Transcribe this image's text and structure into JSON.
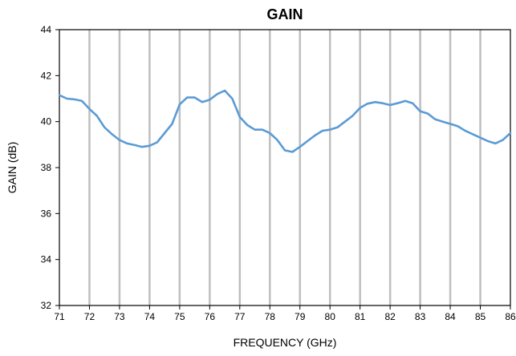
{
  "chart_data": {
    "type": "line",
    "title": "GAIN",
    "xlabel": "FREQUENCY (GHz)",
    "ylabel": "GAIN (dB)",
    "xlim": [
      71,
      86
    ],
    "ylim": [
      32,
      44
    ],
    "x_ticks": [
      71,
      72,
      73,
      74,
      75,
      76,
      77,
      78,
      79,
      80,
      81,
      82,
      83,
      84,
      85,
      86
    ],
    "y_ticks": [
      32,
      34,
      36,
      38,
      40,
      42,
      44
    ],
    "x_tick_labels": [
      "71",
      "72",
      "73",
      "74",
      "75",
      "76",
      "77",
      "78",
      "79",
      "80",
      "81",
      "82",
      "83",
      "84",
      "85",
      "86"
    ],
    "y_tick_labels": [
      "32",
      "34",
      "36",
      "38",
      "40",
      "42",
      "44"
    ],
    "grid": {
      "vertical": true,
      "horizontal": false
    },
    "line_color": "#5b9bd5",
    "grid_color": "#bfbfbf",
    "series": [
      {
        "x": [
          71.0,
          71.25,
          71.5,
          71.75,
          72.0,
          72.25,
          72.5,
          72.75,
          73.0,
          73.25,
          73.5,
          73.75,
          74.0,
          74.25,
          74.5,
          74.75,
          75.0,
          75.25,
          75.5,
          75.75,
          76.0,
          76.25,
          76.5,
          76.75,
          77.0,
          77.25,
          77.5,
          77.75,
          78.0,
          78.25,
          78.5,
          78.75,
          79.0,
          79.25,
          79.5,
          79.75,
          80.0,
          80.25,
          80.5,
          80.75,
          81.0,
          81.25,
          81.5,
          81.75,
          82.0,
          82.25,
          82.5,
          82.75,
          83.0,
          83.25,
          83.5,
          83.75,
          84.0,
          84.25,
          84.5,
          84.75,
          85.0,
          85.25,
          85.5,
          85.75,
          86.0
        ],
        "y": [
          41.15,
          41.0,
          40.97,
          40.9,
          40.55,
          40.25,
          39.75,
          39.45,
          39.2,
          39.05,
          38.98,
          38.9,
          38.95,
          39.1,
          39.5,
          39.9,
          40.75,
          41.05,
          41.05,
          40.85,
          40.95,
          41.2,
          41.35,
          41.0,
          40.2,
          39.85,
          39.65,
          39.65,
          39.5,
          39.2,
          38.75,
          38.68,
          38.9,
          39.15,
          39.4,
          39.6,
          39.65,
          39.75,
          40.0,
          40.25,
          40.6,
          40.78,
          40.85,
          40.8,
          40.72,
          40.8,
          40.9,
          40.8,
          40.45,
          40.35,
          40.1,
          40.0,
          39.9,
          39.8,
          39.6,
          39.45,
          39.3,
          39.15,
          39.05,
          39.2,
          39.5
        ]
      }
    ]
  }
}
